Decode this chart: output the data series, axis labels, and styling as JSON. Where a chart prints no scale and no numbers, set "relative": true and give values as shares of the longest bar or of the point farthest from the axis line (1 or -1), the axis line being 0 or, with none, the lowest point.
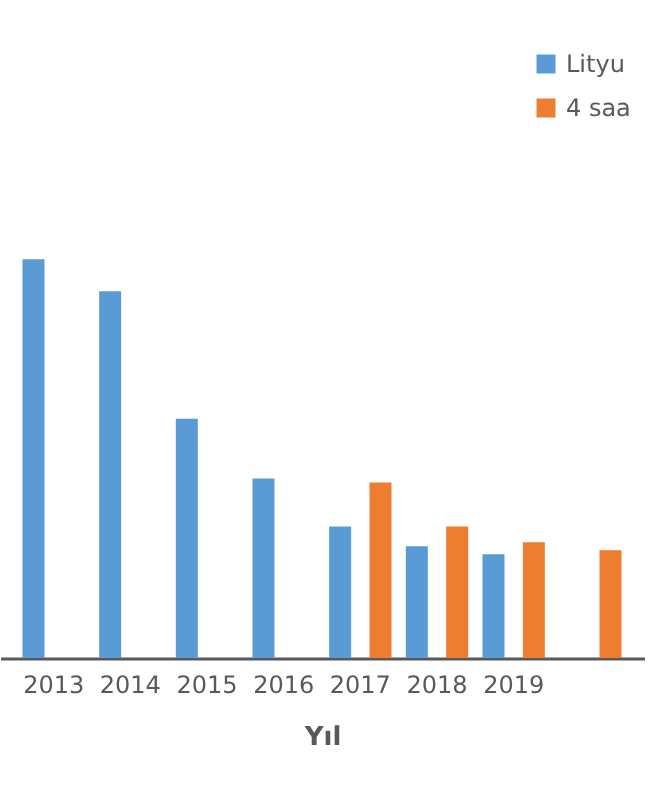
{
  "chart_data": {
    "type": "bar",
    "xlabel": "Yıl",
    "relative": true,
    "legend": "top right",
    "grid": false,
    "categories": [
      "2013",
      "2014",
      "2015",
      "2016",
      "2017",
      "2018",
      "2019",
      null
    ],
    "series": [
      {
        "name": "Lityu",
        "color": "#5b9bd5",
        "values": [
          1,
          0.92,
          0.6,
          0.45,
          0.33,
          0.28,
          0.26,
          null
        ]
      },
      {
        "name": "4 saa",
        "color": "#ed7d31",
        "values": [
          null,
          null,
          null,
          null,
          0.44,
          0.33,
          0.29,
          0.27
        ]
      }
    ]
  }
}
